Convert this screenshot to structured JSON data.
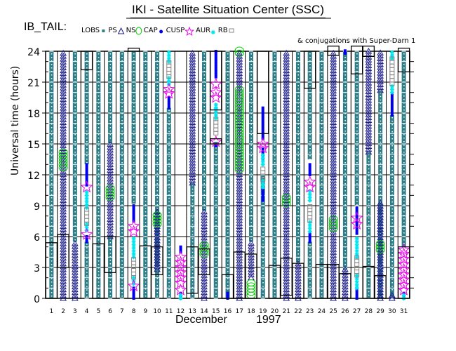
{
  "header": {
    "title": "IKI - Satellite Situation Center (SSC)",
    "satellite_label": "IB_TAIL:",
    "conjugation_note": "& conjugations with Super-Darn 1"
  },
  "colors": {
    "LOBS": "#2e7d87",
    "PS": "#2e7d87",
    "NS": "#1a1a8c",
    "CAP": "#00cc00",
    "CUSP": "#0000ee",
    "AUR": "#ee00ee",
    "RB_mark": "#00e5ee",
    "RB_box": "#888888",
    "grid": "#000000"
  },
  "chart_data": {
    "type": "scatter",
    "title": "IKI - Satellite Situation Center (SSC)",
    "xlabel": "December 1997",
    "xlabel_month": "December",
    "xlabel_year": "1997",
    "ylabel": "Universal time (hours)",
    "xlim": [
      0.5,
      31.5
    ],
    "ylim": [
      0,
      24
    ],
    "yticks": [
      0,
      3,
      6,
      9,
      12,
      15,
      18,
      21,
      24
    ],
    "xticks": [
      1,
      2,
      3,
      4,
      5,
      6,
      7,
      8,
      9,
      10,
      11,
      12,
      13,
      14,
      15,
      16,
      17,
      18,
      19,
      20,
      21,
      22,
      23,
      24,
      25,
      26,
      27,
      28,
      29,
      30,
      31
    ],
    "grid": true,
    "legend_placement": "top",
    "legend": [
      {
        "key": "LOBS",
        "label": "LOBS",
        "marker": "small-square-teal"
      },
      {
        "key": "PS",
        "label": "PS",
        "marker": "triangle-navy"
      },
      {
        "key": "NS",
        "label": "NS",
        "marker": "circle-green"
      },
      {
        "key": "CAP",
        "label": "CAP",
        "marker": "dot-blue"
      },
      {
        "key": "CUSP",
        "label": "CUSP",
        "marker": "star-magenta"
      },
      {
        "key": "AUR",
        "label": "AUR",
        "marker": "asterisk-cyan"
      },
      {
        "key": "RB",
        "label": "RB",
        "marker": "square-gray"
      }
    ],
    "right_ticks_hours": [
      1,
      2,
      4,
      5,
      7,
      8,
      10,
      11,
      13,
      14,
      16,
      17,
      19,
      20,
      22,
      23
    ],
    "days": [
      {
        "day": 1,
        "lobs": [
          [
            0,
            24
          ]
        ],
        "ns": [],
        "cap": [],
        "cusp": [],
        "aur": [],
        "rb": [],
        "cyan": [],
        "conj": [
          [
            0,
            5.4
          ]
        ]
      },
      {
        "day": 2,
        "lobs": [],
        "ns": [
          [
            0,
            24
          ]
        ],
        "cap": [
          [
            12.7,
            14.2
          ]
        ],
        "cusp": [],
        "aur": [],
        "rb": [],
        "cyan": [],
        "conj": [
          [
            3,
            6.2
          ]
        ]
      },
      {
        "day": 3,
        "lobs": [
          [
            5.5,
            24
          ]
        ],
        "ns": [
          [
            0,
            5.5
          ]
        ],
        "cap": [],
        "cusp": [],
        "aur": [],
        "rb": [],
        "cyan": [],
        "conj": []
      },
      {
        "day": 4,
        "lobs": [
          [
            13,
            24
          ],
          [
            0,
            5.5
          ]
        ],
        "ns": [],
        "cap": [],
        "cusp": [
          [
            5.5,
            6
          ],
          [
            11,
            13
          ]
        ],
        "aur": [
          [
            6.2
          ],
          [
            10.8
          ]
        ],
        "rb": [
          [
            7.2,
            8.8
          ]
        ],
        "cyan": [
          [
            6.6,
            7.2
          ],
          [
            8.8,
            10.3
          ]
        ],
        "conj": [
          [
            22.2,
            24
          ]
        ]
      },
      {
        "day": 5,
        "lobs": [
          [
            0,
            24
          ]
        ],
        "ns": [],
        "cap": [],
        "cusp": [],
        "aur": [],
        "rb": [],
        "cyan": [],
        "conj": [
          [
            0,
            5.3
          ]
        ]
      },
      {
        "day": 6,
        "lobs": [
          [
            0,
            6
          ],
          [
            15,
            24
          ]
        ],
        "ns": [
          [
            6,
            15
          ]
        ],
        "cap": [
          [
            9.8,
            10.8
          ]
        ],
        "cusp": [],
        "aur": [],
        "rb": [],
        "cyan": [],
        "conj": [
          [
            2.5,
            6
          ]
        ]
      },
      {
        "day": 7,
        "lobs": [
          [
            0,
            24
          ]
        ],
        "ns": [],
        "cap": [],
        "cusp": [],
        "aur": [],
        "rb": [],
        "cyan": [],
        "conj": []
      },
      {
        "day": 8,
        "lobs": [
          [
            9.2,
            24
          ]
        ],
        "ns": [],
        "cap": [],
        "cusp": [
          [
            0,
            1
          ],
          [
            7.5,
            9.2
          ]
        ],
        "aur": [
          [
            1.2
          ],
          [
            6.5
          ],
          [
            7
          ]
        ],
        "rb": [
          [
            2,
            3.8
          ]
        ],
        "cyan": [
          [
            1.4,
            2
          ],
          [
            4,
            6
          ]
        ],
        "conj": [
          [
            24,
            24.3
          ]
        ]
      },
      {
        "day": 9,
        "lobs": [
          [
            0,
            24
          ]
        ],
        "ns": [],
        "cap": [],
        "cusp": [],
        "aur": [],
        "rb": [],
        "cyan": [],
        "conj": [
          [
            0,
            5.1
          ]
        ]
      },
      {
        "day": 10,
        "lobs": [
          [
            0,
            24
          ]
        ],
        "ns": [
          [
            2.8,
            8.5
          ]
        ],
        "cap": [
          [
            7.2,
            8.2
          ]
        ],
        "cusp": [],
        "aur": [],
        "rb": [],
        "cyan": [],
        "conj": [
          [
            2.3,
            5
          ]
        ]
      },
      {
        "day": 11,
        "lobs": [
          [
            0,
            18.5
          ]
        ],
        "ns": [],
        "cap": [],
        "cusp": [
          [
            18.5,
            19.5
          ]
        ],
        "aur": [
          [
            19.9
          ],
          [
            20.3
          ]
        ],
        "rb": [
          [
            21.5,
            23
          ]
        ],
        "cyan": [
          [
            20.8,
            21.5
          ],
          [
            23,
            24
          ]
        ],
        "conj": []
      },
      {
        "day": 12,
        "lobs": [],
        "ns": [],
        "cap": [],
        "cusp": [
          [
            0,
            0.5
          ],
          [
            4.5,
            5
          ]
        ],
        "aur": [
          [
            0.8
          ],
          [
            1.5
          ],
          [
            2
          ],
          [
            2.5
          ],
          [
            3
          ],
          [
            3.5
          ],
          [
            4
          ]
        ],
        "rb": [],
        "cyan": [
          [
            0,
            0.3
          ]
        ],
        "conj": []
      },
      {
        "day": 13,
        "lobs": [
          [
            0,
            11.2
          ]
        ],
        "ns": [
          [
            11.2,
            24
          ]
        ],
        "cap": [],
        "cusp": [],
        "aur": [],
        "rb": [],
        "cyan": [],
        "conj": [
          [
            0.5,
            5
          ]
        ]
      },
      {
        "day": 14,
        "lobs": [
          [
            8.5,
            24
          ]
        ],
        "ns": [
          [
            0,
            8.5
          ]
        ],
        "cap": [
          [
            4.3,
            5.2
          ]
        ],
        "cusp": [],
        "aur": [],
        "rb": [],
        "cyan": [],
        "conj": [
          [
            2.3,
            4.8
          ]
        ]
      },
      {
        "day": 15,
        "lobs": [
          [
            0,
            15.2
          ]
        ],
        "ns": [],
        "cap": [],
        "cusp": [
          [
            14.8,
            15
          ],
          [
            21.5,
            24
          ]
        ],
        "aur": [
          [
            15.2
          ],
          [
            19.5
          ],
          [
            20
          ],
          [
            20.8
          ]
        ],
        "rb": [
          [
            16,
            17.5
          ]
        ],
        "cyan": [
          [
            17.5,
            18.5
          ],
          [
            18.5,
            19
          ]
        ],
        "conj": [
          [
            18.3,
            24
          ],
          [
            15,
            15.5
          ]
        ]
      },
      {
        "day": 16,
        "lobs": [
          [
            0,
            24
          ]
        ],
        "ns": [],
        "cap": [],
        "cusp": [
          [
            0,
            0.5
          ]
        ],
        "aur": [],
        "rb": [],
        "cyan": [],
        "conj": [
          [
            0,
            2.3
          ]
        ]
      },
      {
        "day": 17,
        "lobs": [],
        "ns": [
          [
            0,
            24
          ]
        ],
        "cap": [
          [
            12.5,
            20.5
          ],
          [
            23.8,
            24.2
          ]
        ],
        "cusp": [],
        "aur": [],
        "rb": [],
        "cyan": [],
        "conj": [
          [
            0,
            4.5
          ]
        ]
      },
      {
        "day": 18,
        "lobs": [
          [
            5.5,
            24
          ]
        ],
        "ns": [
          [
            2,
            5.5
          ]
        ],
        "cap": [
          [
            0.3,
            1.6
          ]
        ],
        "cusp": [],
        "aur": [],
        "rb": [],
        "cyan": [],
        "conj": [
          [
            0,
            4.3
          ]
        ]
      },
      {
        "day": 19,
        "lobs": [
          [
            0,
            12
          ]
        ],
        "ns": [],
        "cap": [],
        "cusp": [
          [
            9.5,
            10.5
          ],
          [
            13.5,
            14.5
          ],
          [
            15.5,
            18.5
          ]
        ],
        "aur": [
          [
            14.6
          ],
          [
            15
          ]
        ],
        "rb": [
          [
            11.5,
            12.8
          ]
        ],
        "cyan": [
          [
            10.8,
            11.5
          ],
          [
            13,
            14
          ]
        ],
        "conj": [
          [
            16,
            24
          ]
        ]
      },
      {
        "day": 20,
        "lobs": [
          [
            0,
            24
          ]
        ],
        "ns": [],
        "cap": [],
        "cusp": [],
        "aur": [],
        "rb": [],
        "cyan": [],
        "conj": [
          [
            0,
            3.2
          ]
        ]
      },
      {
        "day": 21,
        "lobs": [],
        "ns": [
          [
            0,
            24
          ]
        ],
        "cap": [
          [
            9.2,
            10
          ]
        ],
        "cusp": [],
        "aur": [],
        "rb": [],
        "cyan": [],
        "conj": [
          [
            0.3,
            3.9
          ]
        ]
      },
      {
        "day": 22,
        "lobs": [
          [
            3.5,
            24
          ]
        ],
        "ns": [
          [
            0,
            3.5
          ]
        ],
        "cap": [],
        "cusp": [],
        "aur": [],
        "rb": [],
        "cyan": [],
        "conj": [
          [
            0,
            3.4
          ]
        ]
      },
      {
        "day": 23,
        "lobs": [
          [
            0,
            5.5
          ],
          [
            13.5,
            24
          ]
        ],
        "ns": [],
        "cap": [],
        "cusp": [
          [
            5.5,
            6.3
          ],
          [
            12,
            13.2
          ]
        ],
        "aur": [
          [
            10.8
          ],
          [
            11.3
          ]
        ],
        "rb": [
          [
            7.5,
            9
          ]
        ],
        "cyan": [
          [
            6.5,
            7.5
          ],
          [
            9.5,
            10.5
          ]
        ],
        "conj": [
          [
            20.4,
            24
          ]
        ]
      },
      {
        "day": 24,
        "lobs": [
          [
            0,
            24
          ]
        ],
        "ns": [],
        "cap": [],
        "cusp": [],
        "aur": [],
        "rb": [],
        "cyan": [],
        "conj": [
          [
            0,
            3.3
          ]
        ]
      },
      {
        "day": 25,
        "lobs": [],
        "ns": [
          [
            0,
            24
          ]
        ],
        "cap": [
          [
            6.8,
            7.8
          ]
        ],
        "cusp": [],
        "aur": [],
        "rb": [],
        "cyan": [],
        "conj": [
          [
            0,
            3.3
          ],
          [
            23.6,
            24.5
          ]
        ]
      },
      {
        "day": 26,
        "lobs": [
          [
            2.8,
            24
          ]
        ],
        "ns": [
          [
            0,
            2.8
          ]
        ],
        "cap": [],
        "cusp": [
          [
            23.8,
            24.2
          ]
        ],
        "aur": [],
        "rb": [],
        "cyan": [],
        "conj": [
          [
            0,
            2.4
          ]
        ]
      },
      {
        "day": 27,
        "lobs": [
          [
            9,
            24
          ]
        ],
        "ns": [],
        "cap": [],
        "cusp": [
          [
            0,
            1
          ],
          [
            6.3,
            9
          ]
        ],
        "aur": [
          [
            7.2
          ],
          [
            7.8
          ]
        ],
        "rb": [
          [
            2.2,
            4
          ]
        ],
        "cyan": [
          [
            1,
            2.2
          ],
          [
            4,
            6
          ]
        ],
        "conj": [
          [
            21.8,
            24.5
          ]
        ]
      },
      {
        "day": 28,
        "lobs": [
          [
            0,
            14.2
          ],
          [
            24,
            24
          ]
        ],
        "ns": [
          [
            14.2,
            24
          ]
        ],
        "cap": [],
        "cusp": [],
        "aur": [],
        "rb": [],
        "cyan": [],
        "conj": [
          [
            0,
            3.1
          ],
          [
            23.5,
            24.5
          ]
        ]
      },
      {
        "day": 29,
        "lobs": [
          [
            0,
            20.2
          ]
        ],
        "ns": [
          [
            0,
            9.5
          ],
          [
            20.2,
            24
          ]
        ],
        "cap": [
          [
            4.7,
            5.5
          ]
        ],
        "cusp": [],
        "aur": [],
        "rb": [],
        "cyan": [],
        "conj": [
          [
            0,
            2.2
          ]
        ]
      },
      {
        "day": 30,
        "lobs": [
          [
            0,
            17.8
          ]
        ],
        "ns": [
          [
            0,
            0.3
          ]
        ],
        "cap": [],
        "cusp": [
          [
            17.8,
            20
          ]
        ],
        "aur": [],
        "rb": [
          [
            20.8,
            23.3
          ]
        ],
        "cyan": [
          [
            20,
            20.8
          ],
          [
            23.3,
            24
          ]
        ],
        "conj": []
      },
      {
        "day": 31,
        "lobs": [
          [
            5,
            24
          ]
        ],
        "ns": [],
        "cap": [],
        "cusp": [
          [
            0,
            0.5
          ]
        ],
        "aur": [
          [
            0.8
          ],
          [
            1.3
          ],
          [
            1.8
          ],
          [
            2.3
          ],
          [
            2.8
          ],
          [
            3.3
          ],
          [
            3.8
          ],
          [
            4.3
          ],
          [
            4.7
          ]
        ],
        "rb": [],
        "cyan": [
          [
            0,
            0.3
          ]
        ],
        "conj": [
          [
            22,
            24.3
          ],
          [
            0,
            5
          ]
        ]
      }
    ]
  }
}
